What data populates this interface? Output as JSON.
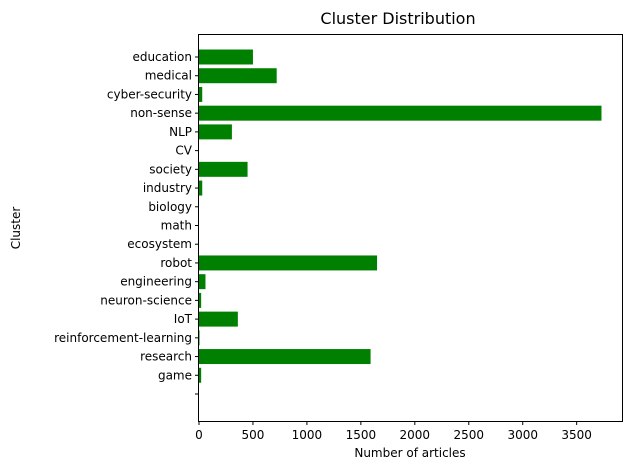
{
  "chart_data": {
    "type": "bar",
    "orientation": "horizontal",
    "title": "Cluster Distribution",
    "xlabel": "Number of articles",
    "ylabel": "Cluster",
    "categories": [
      "",
      "game",
      "research",
      "reinforcement-learning",
      "IoT",
      "neuron-science",
      "engineering",
      "robot",
      "ecosystem",
      "math",
      "biology",
      "industry",
      "society",
      "CV",
      "NLP",
      "non-sense",
      "cyber-security",
      "medical",
      "education"
    ],
    "values": [
      0,
      20,
      1590,
      5,
      360,
      20,
      60,
      1650,
      0,
      0,
      0,
      30,
      450,
      0,
      305,
      3730,
      30,
      720,
      500
    ],
    "xlim": [
      0,
      3920
    ],
    "xticks": [
      0,
      500,
      1000,
      1500,
      2000,
      2500,
      3000,
      3500
    ],
    "grid": false,
    "bar_color": "#008000"
  }
}
